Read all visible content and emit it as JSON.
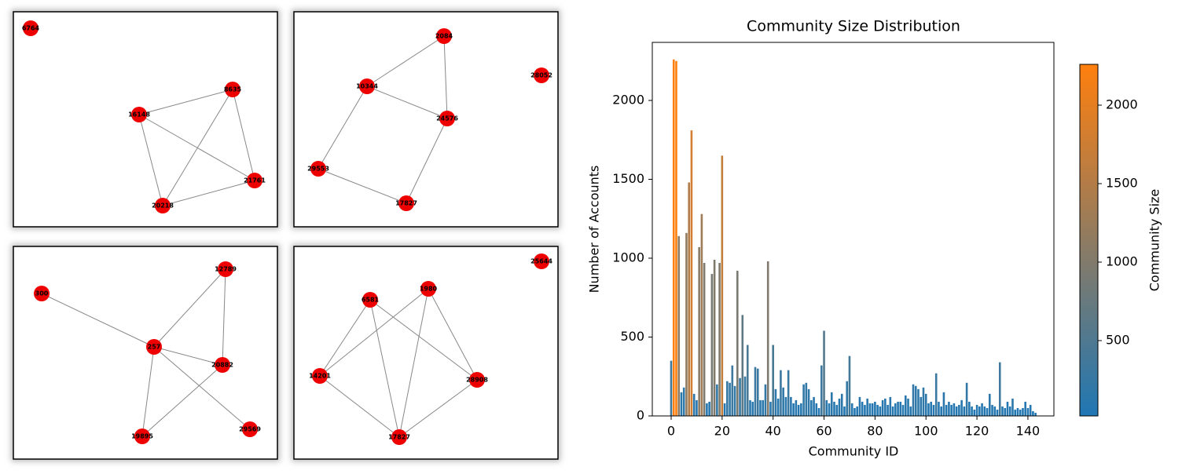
{
  "graphs": [
    {
      "nodes": [
        "6764",
        "8635",
        "16148",
        "21761",
        "20218"
      ]
    },
    {
      "nodes": [
        "2084",
        "10344",
        "28052",
        "24576",
        "29553",
        "17827"
      ]
    },
    {
      "nodes": [
        "12789",
        "300",
        "257",
        "20882",
        "19895",
        "29569"
      ]
    },
    {
      "nodes": [
        "25644",
        "1980",
        "6581",
        "14201",
        "28908",
        "17827"
      ]
    }
  ],
  "chart_data": {
    "type": "bar",
    "title": "Community Size Distribution",
    "xlabel": "Community ID",
    "ylabel": "Number of Accounts",
    "colorbar_label": "Community Size",
    "x": [
      0,
      1,
      2,
      3,
      4,
      5,
      6,
      7,
      8,
      9,
      10,
      11,
      12,
      13,
      14,
      15,
      16,
      17,
      18,
      19,
      20,
      21,
      22,
      23,
      24,
      25,
      26,
      27,
      28,
      29,
      30,
      31,
      32,
      33,
      34,
      35,
      36,
      37,
      38,
      39,
      40,
      41,
      42,
      43,
      44,
      45,
      46,
      47,
      48,
      49,
      50,
      51,
      52,
      53,
      54,
      55,
      56,
      57,
      58,
      59,
      60,
      61,
      62,
      63,
      64,
      65,
      66,
      67,
      68,
      69,
      70,
      71,
      72,
      73,
      74,
      75,
      76,
      77,
      78,
      79,
      80,
      81,
      82,
      83,
      84,
      85,
      86,
      87,
      88,
      89,
      90,
      91,
      92,
      93,
      94,
      95,
      96,
      97,
      98,
      99,
      100,
      101,
      102,
      103,
      104,
      105,
      106,
      107,
      108,
      109,
      110,
      111,
      112,
      113,
      114,
      115,
      116,
      117,
      118,
      119,
      120,
      121,
      122,
      123,
      124,
      125,
      126,
      127,
      128,
      129,
      130,
      131,
      132,
      133,
      134,
      135,
      136,
      137,
      138,
      139,
      140,
      141,
      142,
      143
    ],
    "values": [
      350,
      2260,
      2250,
      1140,
      150,
      180,
      1160,
      1480,
      1810,
      140,
      100,
      1070,
      1280,
      970,
      80,
      90,
      900,
      990,
      200,
      970,
      1650,
      80,
      220,
      210,
      320,
      190,
      920,
      240,
      640,
      250,
      450,
      100,
      90,
      310,
      300,
      100,
      100,
      200,
      980,
      90,
      450,
      170,
      110,
      290,
      180,
      120,
      290,
      120,
      80,
      100,
      70,
      80,
      200,
      210,
      170,
      100,
      120,
      80,
      50,
      320,
      540,
      100,
      80,
      150,
      90,
      70,
      110,
      140,
      60,
      220,
      380,
      80,
      50,
      60,
      120,
      90,
      70,
      110,
      80,
      80,
      90,
      70,
      60,
      100,
      110,
      70,
      120,
      60,
      80,
      90,
      90,
      70,
      130,
      110,
      60,
      200,
      190,
      170,
      120,
      180,
      140,
      80,
      90,
      70,
      270,
      90,
      60,
      150,
      70,
      90,
      70,
      80,
      60,
      70,
      100,
      60,
      210,
      90,
      60,
      40,
      70,
      60,
      80,
      60,
      50,
      140,
      70,
      60,
      40,
      340,
      60,
      50,
      90,
      60,
      110,
      40,
      50,
      40,
      50,
      90,
      50,
      70,
      30,
      20
    ],
    "cmap": [
      "#1f77b4",
      "#ff7f0e"
    ],
    "clim": [
      20,
      2260
    ],
    "cticks": [
      500,
      1000,
      1500,
      2000
    ],
    "xlim": [
      -7.4,
      150.2
    ],
    "xticks": [
      0,
      20,
      40,
      60,
      80,
      100,
      120,
      140
    ],
    "ylim": [
      0,
      2368
    ],
    "yticks": [
      0,
      500,
      1000,
      1500,
      2000
    ]
  }
}
